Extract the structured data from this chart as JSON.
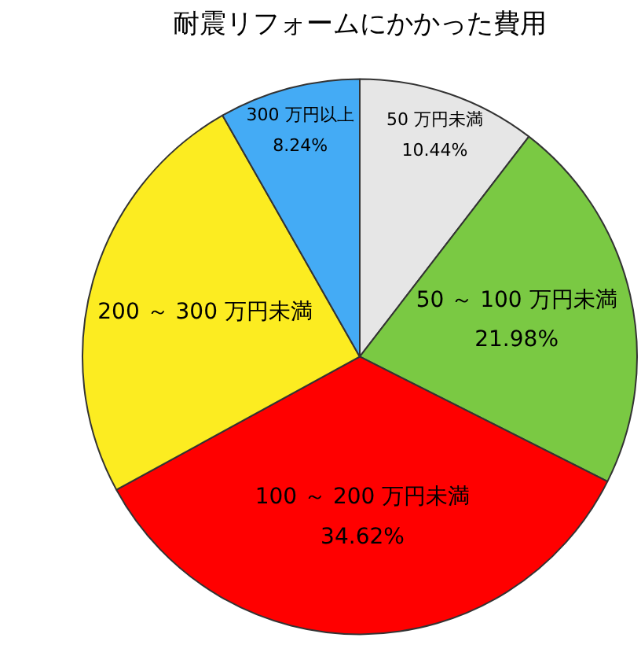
{
  "chart_data": {
    "type": "pie",
    "title": "耐震リフォームにかかった費用",
    "categories": [
      "50 万円未満",
      "50 ～ 100 万円未満",
      "100 ～ 200 万円未満",
      "200 ～ 300 万円未満",
      "300 万円以上"
    ],
    "values": [
      10.44,
      21.98,
      34.62,
      24.72,
      8.24
    ],
    "colors": [
      "#e6e6e6",
      "#7ac943",
      "#ff0000",
      "#fcec21",
      "#44abf5"
    ],
    "value_labels": [
      "10.44%",
      "21.98%",
      "34.62%",
      null,
      "8.24%"
    ],
    "legend": false
  }
}
